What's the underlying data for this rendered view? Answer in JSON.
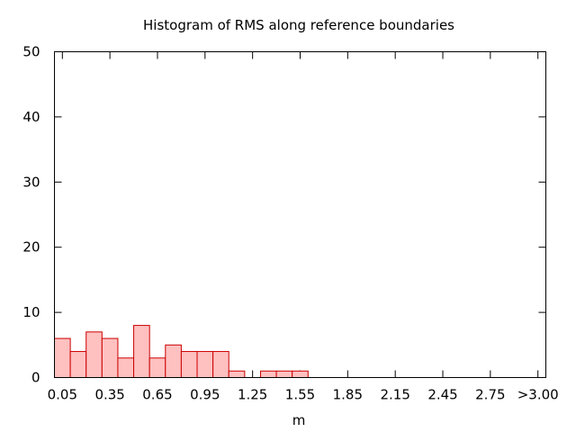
{
  "chart_data": {
    "type": "bar",
    "title": "Histogram of RMS along reference boundaries",
    "xlabel": "m",
    "ylabel": "",
    "ylim": [
      0,
      50
    ],
    "yticks": [
      0,
      10,
      20,
      30,
      40,
      50
    ],
    "bin_width": 0.1,
    "bin_centers": [
      0.05,
      0.15,
      0.25,
      0.35,
      0.45,
      0.55,
      0.65,
      0.75,
      0.85,
      0.95,
      1.05,
      1.15,
      1.25,
      1.35,
      1.45,
      1.55,
      1.65,
      1.75,
      1.85,
      1.95,
      2.05,
      2.15,
      2.25,
      2.35,
      2.45,
      2.55,
      2.65,
      2.75,
      2.85,
      2.95
    ],
    "values": [
      6,
      4,
      7,
      6,
      3,
      8,
      3,
      5,
      4,
      4,
      4,
      1,
      0,
      1,
      1,
      1,
      0,
      0,
      0,
      0,
      0,
      0,
      0,
      0,
      0,
      0,
      0,
      0,
      0,
      0
    ],
    "x_tick_labels": [
      "0.05",
      "0.35",
      "0.65",
      "0.95",
      "1.25",
      "1.55",
      "1.85",
      "2.15",
      "2.45",
      "2.75",
      ">3.00"
    ],
    "grid": false,
    "legend": "none",
    "colors": {
      "bar_fill": "#ffc0c0",
      "bar_stroke": "#cc0000",
      "axis": "#000000"
    }
  }
}
